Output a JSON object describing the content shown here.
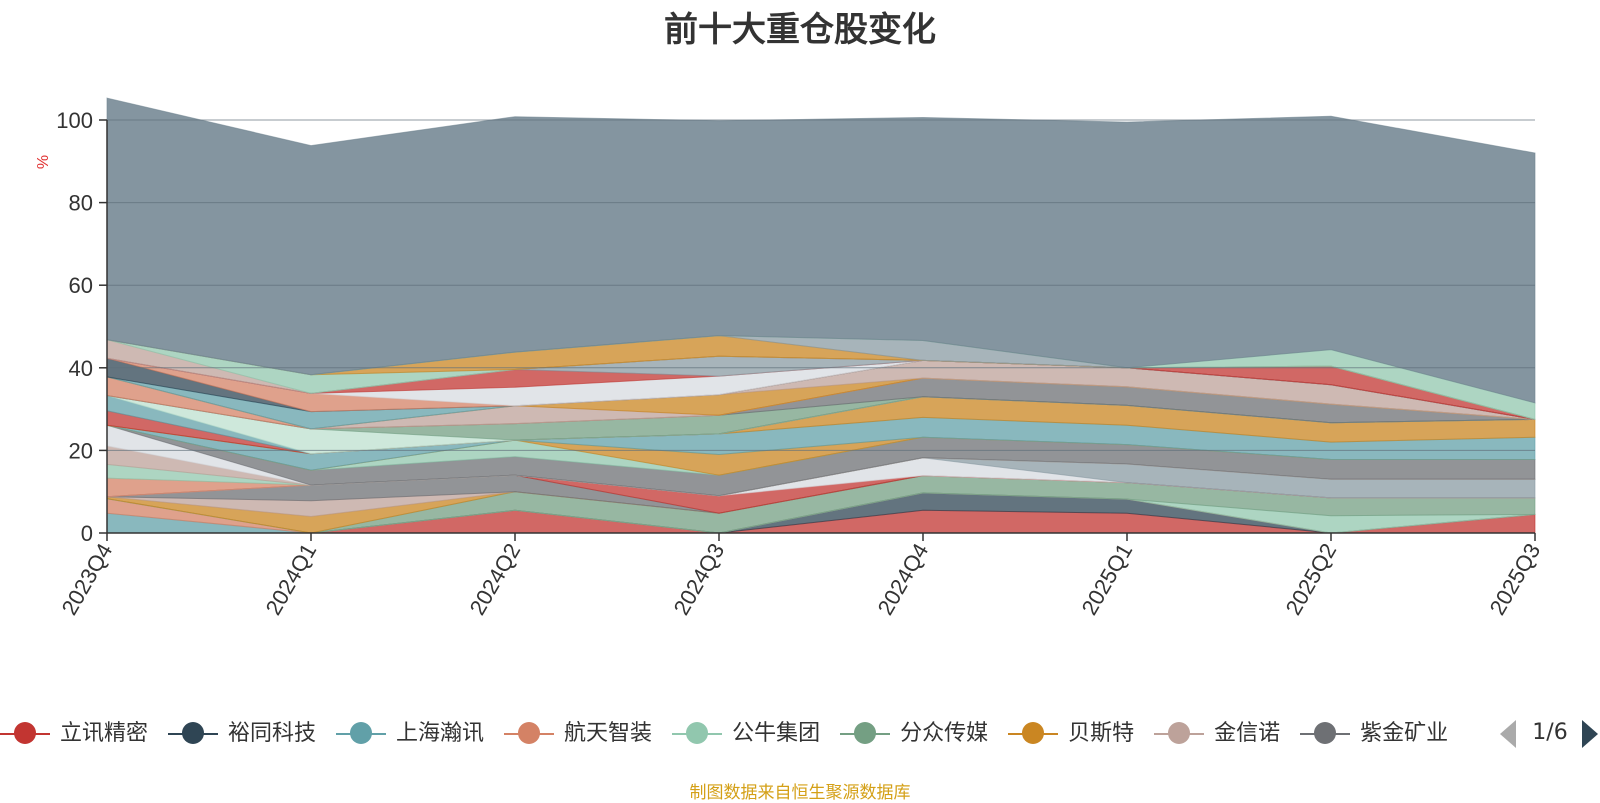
{
  "chart_data": {
    "type": "area",
    "stacked": true,
    "title": "前十大重仓股变化",
    "ylabel": "%",
    "ylim": [
      0,
      100
    ],
    "yticks": [
      "0",
      "20",
      "40",
      "60",
      "80",
      "100"
    ],
    "categories": [
      "2023Q4",
      "2024Q1",
      "2024Q2",
      "2024Q3",
      "2024Q4",
      "2025Q1",
      "2025Q2",
      "2025Q3"
    ],
    "series": [
      {
        "name": "立讯精密",
        "color": "#c23531",
        "values": [
          0,
          0,
          5.5,
          0,
          5.5,
          4.8,
          0,
          4.5
        ]
      },
      {
        "name": "裕同科技",
        "color": "#2f4554",
        "values": [
          0,
          0,
          0,
          0,
          4.2,
          3.4,
          0,
          0
        ]
      },
      {
        "name": "上海瀚讯",
        "color": "#61a0a8",
        "values": [
          4.8,
          0,
          0,
          0,
          0,
          0,
          0,
          0
        ]
      },
      {
        "name": "航天智装",
        "color": "#d48265",
        "values": [
          3.5,
          0,
          0,
          0,
          0,
          0,
          0,
          0
        ]
      },
      {
        "name": "公牛集团",
        "color": "#91c7ae",
        "values": [
          0,
          0,
          0,
          0,
          0,
          0,
          4.2,
          0
        ]
      },
      {
        "name": "分众传媒",
        "color": "#749f83",
        "values": [
          0,
          0,
          4.5,
          4.8,
          4.2,
          4.0,
          4.3,
          4.0
        ]
      },
      {
        "name": "贝斯特",
        "color": "#ca8622",
        "values": [
          0.5,
          4.0,
          0,
          0,
          0,
          0,
          0,
          0
        ]
      },
      {
        "name": "金信诺",
        "color": "#bda29a",
        "values": [
          0,
          3.8,
          0,
          0,
          0,
          0,
          0,
          0
        ]
      },
      {
        "name": "紫金矿业",
        "color": "#6e7074",
        "values": [
          0,
          3.8,
          4.0,
          0,
          0,
          0,
          0,
          0
        ]
      },
      {
        "name": "",
        "color": "#c23531",
        "values": [
          0,
          0,
          0,
          4.2,
          0,
          0,
          0,
          0
        ]
      },
      {
        "name": "",
        "color": "#d7dbe0",
        "values": [
          0,
          0,
          0,
          0,
          4.3,
          0,
          0,
          0
        ]
      },
      {
        "name": "",
        "color": "#8a9ba3",
        "values": [
          0,
          0,
          0,
          0,
          0,
          4.5,
          4.5,
          4.5
        ]
      },
      {
        "name": "",
        "color": "#d48265",
        "values": [
          4.5,
          0,
          0,
          0,
          0,
          0,
          0,
          0
        ]
      },
      {
        "name": "",
        "color": "#91c7ae",
        "values": [
          3.3,
          0,
          0,
          0,
          0,
          0,
          0,
          0
        ]
      },
      {
        "name": "",
        "color": "#bda29a",
        "values": [
          4.5,
          0,
          0,
          0,
          0,
          0,
          0,
          0
        ]
      },
      {
        "name": "",
        "color": "#d7dbe0",
        "values": [
          5.0,
          0,
          0,
          0,
          0,
          0,
          0,
          0
        ]
      },
      {
        "name": "",
        "color": "#6e7074",
        "values": [
          0,
          3.6,
          4.5,
          5.0,
          5.0,
          4.7,
          4.8,
          4.8
        ]
      },
      {
        "name": "",
        "color": "#91c7ae",
        "values": [
          0,
          0,
          4.0,
          0,
          0,
          0,
          0,
          0
        ]
      },
      {
        "name": "",
        "color": "#ca8622",
        "values": [
          0,
          0,
          0,
          5.0,
          0,
          0,
          0,
          0
        ]
      },
      {
        "name": "",
        "color": "#61a0a8",
        "values": [
          0,
          4.0,
          0,
          5.0,
          4.8,
          4.7,
          4.2,
          5.4
        ]
      },
      {
        "name": "",
        "color": "#ca8622",
        "values": [
          0,
          0,
          0,
          0,
          5.0,
          4.8,
          4.7,
          4.3
        ]
      },
      {
        "name": "",
        "color": "#c23531",
        "values": [
          3.5,
          0,
          0,
          0,
          0,
          0,
          0,
          0
        ]
      },
      {
        "name": "",
        "color": "#61a0a8",
        "values": [
          3.7,
          0,
          0,
          0,
          0,
          0,
          0,
          0
        ]
      },
      {
        "name": "",
        "color": "#bde0cf",
        "values": [
          0,
          6.0,
          0,
          0,
          0,
          0,
          0,
          0
        ]
      },
      {
        "name": "",
        "color": "#749f83",
        "values": [
          0,
          0,
          4.0,
          4.5,
          0,
          0,
          0,
          0
        ]
      },
      {
        "name": "",
        "color": "#6e7074",
        "values": [
          0,
          0,
          0,
          0,
          4.5,
          4.5,
          4.5,
          0
        ]
      },
      {
        "name": "",
        "color": "#d48265",
        "values": [
          4.5,
          0,
          0,
          0,
          0,
          0,
          0,
          0
        ]
      },
      {
        "name": "",
        "color": "#bda29a",
        "values": [
          0,
          0,
          4.3,
          0,
          0,
          0,
          0,
          0
        ]
      },
      {
        "name": "",
        "color": "#ca8622",
        "values": [
          0,
          0,
          0,
          5.0,
          0,
          0,
          0,
          0
        ]
      },
      {
        "name": "",
        "color": "#bda29a",
        "values": [
          0,
          0,
          0,
          0,
          4.3,
          4.6,
          4.7,
          0
        ]
      },
      {
        "name": "",
        "color": "#61a0a8",
        "values": [
          0,
          4.2,
          0,
          0,
          0,
          0,
          0,
          0
        ]
      },
      {
        "name": "",
        "color": "#2f4554",
        "values": [
          4.5,
          0,
          0,
          0,
          0,
          0,
          0,
          0
        ]
      },
      {
        "name": "",
        "color": "#d48265",
        "values": [
          0,
          4.4,
          0,
          0,
          0,
          0,
          0,
          0
        ]
      },
      {
        "name": "",
        "color": "#d7dbe0",
        "values": [
          0,
          0,
          4.5,
          4.5,
          0,
          0,
          0,
          0
        ]
      },
      {
        "name": "",
        "color": "#c23531",
        "values": [
          0,
          0,
          4.3,
          0,
          0,
          0,
          0,
          0
        ]
      },
      {
        "name": "",
        "color": "#8a9ba3",
        "values": [
          0,
          0,
          0,
          4.8,
          0,
          0,
          0,
          0
        ]
      },
      {
        "name": "",
        "color": "#c23531",
        "values": [
          0,
          0,
          0,
          0,
          0,
          0,
          4.5,
          0
        ]
      },
      {
        "name": "",
        "color": "#bda29a",
        "values": [
          4.5,
          0,
          0,
          0,
          0,
          0,
          0,
          0
        ]
      },
      {
        "name": "",
        "color": "#91c7ae",
        "values": [
          0,
          4.5,
          0,
          0,
          0,
          0,
          0,
          0
        ]
      },
      {
        "name": "",
        "color": "#ca8622",
        "values": [
          0,
          0,
          4.2,
          5.0,
          0,
          0,
          0,
          0
        ]
      },
      {
        "name": "",
        "color": "#8a9ba3",
        "values": [
          0,
          0,
          0,
          0,
          4.8,
          0,
          0,
          0
        ]
      },
      {
        "name": "",
        "color": "#91c7ae",
        "values": [
          0,
          0,
          0,
          0,
          0,
          0,
          4.0,
          4.0
        ]
      },
      {
        "name": "",
        "color": "#6f838f",
        "values": [
          58.5,
          55.5,
          57.0,
          52.0,
          54.0,
          59.5,
          56.5,
          60.5
        ]
      }
    ]
  },
  "legend": {
    "items": [
      {
        "label": "立讯精密",
        "color": "#c23531"
      },
      {
        "label": "裕同科技",
        "color": "#2f4554"
      },
      {
        "label": "上海瀚讯",
        "color": "#61a0a8"
      },
      {
        "label": "航天智装",
        "color": "#d48265"
      },
      {
        "label": "公牛集团",
        "color": "#91c7ae"
      },
      {
        "label": "分众传媒",
        "color": "#749f83"
      },
      {
        "label": "贝斯特",
        "color": "#ca8622"
      },
      {
        "label": "金信诺",
        "color": "#bda29a"
      },
      {
        "label": "紫金矿业",
        "color": "#6e7074"
      }
    ],
    "page_indicator": "1/6"
  },
  "source_note": "制图数据来自恒生聚源数据库",
  "colors": {
    "axis": "#333333",
    "grid": "#5f6f7a",
    "unit_label": "#e03030",
    "source_note": "#d4a017"
  }
}
